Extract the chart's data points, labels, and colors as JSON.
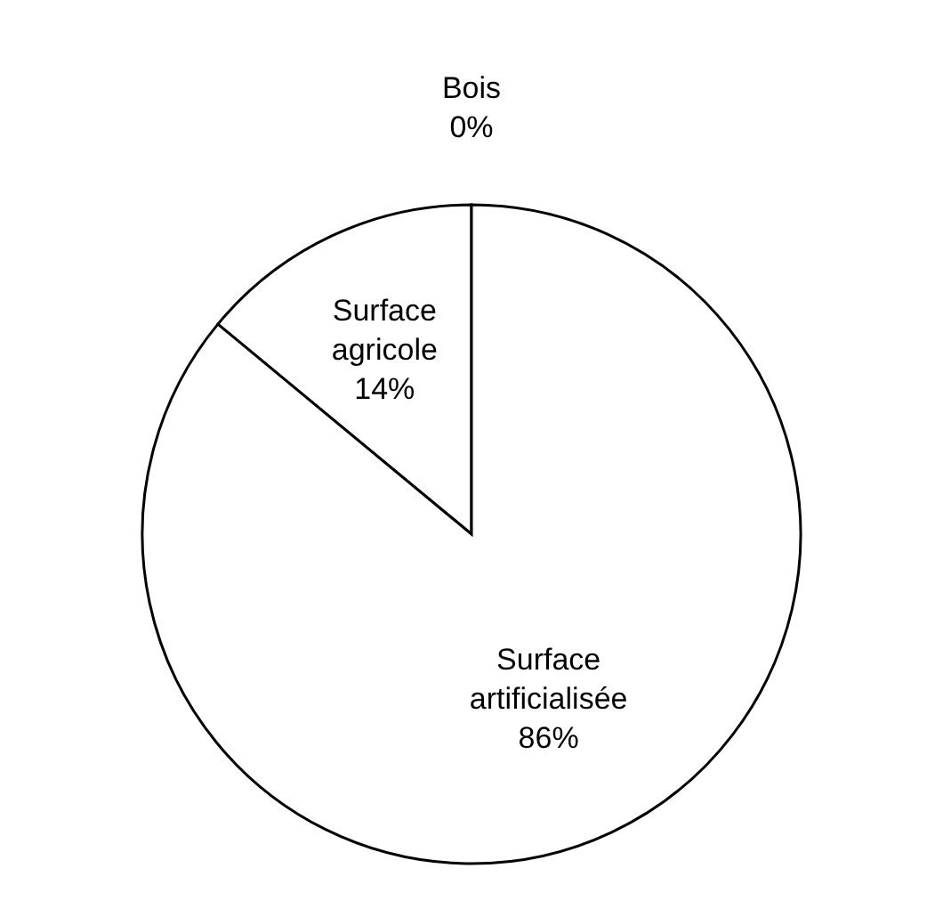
{
  "chart_data": {
    "type": "pie",
    "categories": [
      "Bois",
      "Surface agricole",
      "Surface artificialisée"
    ],
    "values": [
      0,
      14,
      86
    ],
    "value_labels": [
      "0%",
      "14%",
      "86%"
    ],
    "colors": [
      "#ffffff",
      "#ffffff",
      "#ffffff"
    ]
  }
}
